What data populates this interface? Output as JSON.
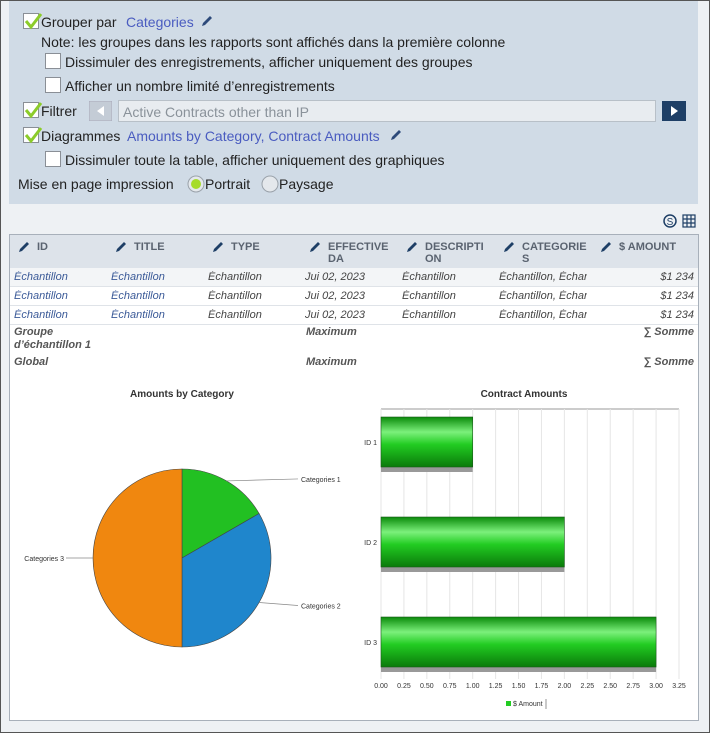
{
  "options": {
    "group_by": {
      "label": "Grouper par",
      "value": "Categories",
      "checked": true
    },
    "note": "Note: les groupes dans les rapports sont affichés dans la première colonne",
    "hide_records": {
      "label": "Dissimuler des enregistrements, afficher uniquement des groupes",
      "checked": false
    },
    "limit_records": {
      "label": "Afficher un nombre limité d’enregistrements",
      "checked": false
    },
    "filter": {
      "label": "Filtrer",
      "value": "Active Contracts other than IP",
      "checked": true
    },
    "charts": {
      "label": "Diagrammes",
      "value": "Amounts by Category, Contract Amounts",
      "checked": true
    },
    "hide_table": {
      "label": "Dissimuler toute la table, afficher uniquement des graphiques",
      "checked": false
    },
    "print_layout": {
      "label": "Mise en page impression",
      "options": [
        "Portrait",
        "Paysage"
      ],
      "selected": 0
    }
  },
  "table": {
    "columns": [
      "ID",
      "TITLE",
      "TYPE",
      "EFFECTIVE DA",
      "DESCRIPTION",
      "CATEGORIES",
      "$ AMOUNT"
    ],
    "rows": [
      [
        "Échantillon",
        "Échantillon",
        "Échantillon",
        "Jui 02, 2023",
        "Échantillon",
        "Échantillon, Échan",
        "$1 234"
      ],
      [
        "Échantillon",
        "Échantillon",
        "Échantillon",
        "Jui 02, 2023",
        "Échantillon",
        "Échantillon, Échan",
        "$1 234"
      ],
      [
        "Échantillon",
        "Échantillon",
        "Échantillon",
        "Jui 02, 2023",
        "Échantillon",
        "Échantillon, Échan",
        "$1 234"
      ]
    ],
    "group_rows": [
      {
        "label": "Groupe d’échantillon 1",
        "aggregate": "Maximum",
        "total": "∑ Somme"
      },
      {
        "label": "Global",
        "aggregate": "Maximum",
        "total": "∑ Somme"
      }
    ]
  },
  "charts": [
    {
      "type": "pie",
      "title": "Amounts by Category",
      "categories": [
        "Categories 1",
        "Categories 2",
        "Categories 3"
      ],
      "values": [
        1,
        2,
        3
      ],
      "colors": [
        "#22c022",
        "#1f86cc",
        "#f0870f"
      ]
    },
    {
      "type": "bar",
      "title": "Contract Amounts",
      "categories": [
        "ID 1",
        "ID 2",
        "ID 3"
      ],
      "series": [
        {
          "name": "$ Amount",
          "color": "#22cc22",
          "values": [
            1,
            2,
            3
          ]
        }
      ],
      "xlim": [
        0,
        3.25
      ],
      "xticks": [
        {
          "value": 0,
          "label": "0.00"
        },
        {
          "value": 0.25,
          "label": "0.25"
        },
        {
          "value": 0.5,
          "label": "0.50"
        },
        {
          "value": 0.75,
          "label": "0.75"
        },
        {
          "value": 1,
          "label": "1.00"
        },
        {
          "value": 1.25,
          "label": "1.25"
        },
        {
          "value": 1.5,
          "label": "1.50"
        },
        {
          "value": 1.75,
          "label": "1.75"
        },
        {
          "value": 2,
          "label": "2.00"
        },
        {
          "value": 2.25,
          "label": "2.25"
        },
        {
          "value": 2.5,
          "label": "2.50"
        },
        {
          "value": 2.75,
          "label": "2.75"
        },
        {
          "value": 3,
          "label": "3.00"
        },
        {
          "value": 3.25,
          "label": "3.25"
        }
      ],
      "grid": true
    }
  ]
}
